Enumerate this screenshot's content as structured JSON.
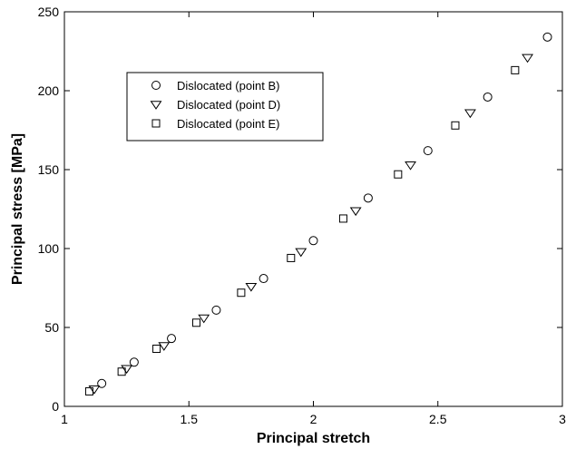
{
  "chart_data": {
    "type": "scatter",
    "xlabel": "Principal stretch",
    "ylabel": "Principal stress [MPa]",
    "xlim": [
      1,
      3
    ],
    "ylim": [
      0,
      250
    ],
    "x_ticks": [
      1,
      1.5,
      2,
      2.5,
      3
    ],
    "x_tick_labels": [
      "1",
      "1.5",
      "2",
      "2.5",
      "3"
    ],
    "y_ticks": [
      0,
      50,
      100,
      150,
      200,
      250
    ],
    "y_tick_labels": [
      "0",
      "50",
      "100",
      "150",
      "200",
      "250"
    ],
    "grid": false,
    "legend_placement": "upper-left",
    "series": [
      {
        "name": "Dislocated (point B)",
        "marker": "circle",
        "color": "#000000",
        "points": [
          [
            1.15,
            14.5
          ],
          [
            1.28,
            28
          ],
          [
            1.43,
            43
          ],
          [
            1.61,
            61
          ],
          [
            1.8,
            81
          ],
          [
            2.0,
            105
          ],
          [
            2.22,
            132
          ],
          [
            2.46,
            162
          ],
          [
            2.7,
            196
          ],
          [
            2.94,
            234
          ]
        ]
      },
      {
        "name": "Dislocated (point D)",
        "marker": "triangle-down",
        "color": "#000000",
        "points": [
          [
            1.12,
            11
          ],
          [
            1.25,
            24
          ],
          [
            1.4,
            38.5
          ],
          [
            1.56,
            56
          ],
          [
            1.75,
            76
          ],
          [
            1.95,
            98
          ],
          [
            2.17,
            124
          ],
          [
            2.39,
            153
          ],
          [
            2.63,
            186
          ],
          [
            2.86,
            221
          ]
        ]
      },
      {
        "name": "Dislocated (point E)",
        "marker": "square",
        "color": "#000000",
        "points": [
          [
            1.1,
            9.5
          ],
          [
            1.23,
            22
          ],
          [
            1.37,
            36.5
          ],
          [
            1.53,
            53
          ],
          [
            1.71,
            72
          ],
          [
            1.91,
            94
          ],
          [
            2.12,
            119
          ],
          [
            2.34,
            147
          ],
          [
            2.57,
            178
          ],
          [
            2.81,
            213
          ]
        ]
      }
    ]
  }
}
